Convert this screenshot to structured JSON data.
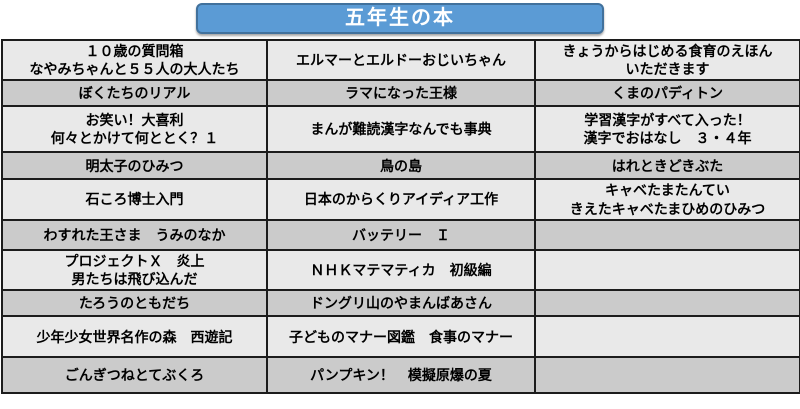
{
  "title": "五年生の本",
  "colors": {
    "banner_fill": "#5B9BD5",
    "banner_border": "#41719C",
    "banner_text": "#FFFFFF",
    "row_light": "#E9E9E9",
    "row_gray": "#CBCBCB",
    "grid_border": "#1C1C1C",
    "cell_text": "#000000"
  },
  "table": {
    "rows": [
      {
        "cells": [
          "１０歳の質問箱\nなやみちゃんと５５人の大人たち",
          "エルマーとエルドーおじいちゃん",
          "きょうからはじめる食育のえほん\nいただきます"
        ]
      },
      {
        "cells": [
          "ぼくたちのリアル",
          "ラマになった王様",
          "くまのパディトン"
        ]
      },
      {
        "cells": [
          "お笑い！大喜利\n何々とかけて何ととく？１",
          "まんが難読漢字なんでも事典",
          "学習漢字がすべて入った！\n漢字でおはなし　３・４年"
        ]
      },
      {
        "cells": [
          "明太子のひみつ",
          "鳥の島",
          "はれときどきぶた"
        ]
      },
      {
        "cells": [
          "石ころ博士入門",
          "日本のからくりアイディア工作",
          "キャベたまたんてい\nきえたキャベたまひめのひみつ"
        ]
      },
      {
        "cells": [
          "わすれた王さま　うみのなか",
          "バッテリー　Ｉ",
          ""
        ]
      },
      {
        "cells": [
          "プロジェクトＸ　炎上\n男たちは飛び込んだ",
          "ＮＨＫマテマティカ　初級編",
          ""
        ]
      },
      {
        "cells": [
          "たろうのともだち",
          "ドングリ山のやまんばあさん",
          ""
        ]
      },
      {
        "cells": [
          "少年少女世界名作の森　西遊記",
          "子どものマナー図鑑　食事のマナー",
          ""
        ]
      },
      {
        "cells": [
          "ごんぎつねとてぶくろ",
          "パンプキン！　模擬原爆の夏",
          ""
        ]
      }
    ]
  }
}
